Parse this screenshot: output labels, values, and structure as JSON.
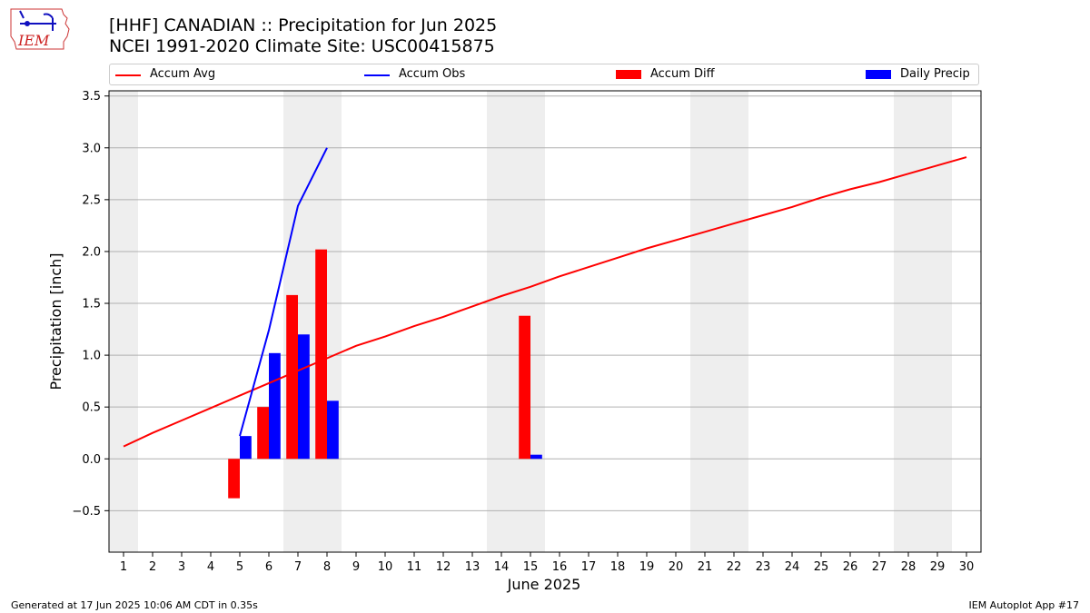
{
  "header": {
    "title_line1": "[HHF] CANADIAN :: Precipitation for Jun 2025",
    "title_line2": "NCEI 1991-2020 Climate Site: USC00415875"
  },
  "logo": {
    "text": "IEM",
    "icon": "iem-iowa-logo-icon"
  },
  "footer": {
    "left": "Generated at 17 Jun 2025 10:06 AM CDT in 0.35s",
    "right": "IEM Autoplot App #17"
  },
  "colors": {
    "avg": "#ff0000",
    "obs": "#0000ff",
    "diff": "#ff0000",
    "daily": "#0000ff",
    "weekend_shade": "#eeeeee",
    "grid": "#b0b0b0"
  },
  "chart_data": {
    "type": "bar",
    "xlabel": "June 2025",
    "ylabel": "Precipitation [inch]",
    "xlim": [
      0.5,
      30.5
    ],
    "ylim": [
      -0.9,
      3.55
    ],
    "yticks": [
      -0.5,
      0.0,
      0.5,
      1.0,
      1.5,
      2.0,
      2.5,
      3.0,
      3.5
    ],
    "ytick_labels": [
      "−0.5",
      "0.0",
      "0.5",
      "1.0",
      "1.5",
      "2.0",
      "2.5",
      "3.0",
      "3.5"
    ],
    "days": [
      1,
      2,
      3,
      4,
      5,
      6,
      7,
      8,
      9,
      10,
      11,
      12,
      13,
      14,
      15,
      16,
      17,
      18,
      19,
      20,
      21,
      22,
      23,
      24,
      25,
      26,
      27,
      28,
      29,
      30
    ],
    "grid": "horizontal",
    "legend_position": "top",
    "weekend_days": [
      1,
      7,
      8,
      14,
      15,
      21,
      22,
      28,
      29
    ],
    "series": [
      {
        "name": "Accum Avg",
        "kind": "line",
        "x": [
          1,
          2,
          3,
          4,
          5,
          6,
          7,
          8,
          9,
          10,
          11,
          12,
          13,
          14,
          15,
          16,
          17,
          18,
          19,
          20,
          21,
          22,
          23,
          24,
          25,
          26,
          27,
          28,
          29,
          30
        ],
        "values": [
          0.12,
          0.25,
          0.37,
          0.49,
          0.61,
          0.73,
          0.85,
          0.97,
          1.09,
          1.18,
          1.28,
          1.37,
          1.47,
          1.57,
          1.66,
          1.76,
          1.85,
          1.94,
          2.03,
          2.11,
          2.19,
          2.27,
          2.35,
          2.43,
          2.52,
          2.6,
          2.67,
          2.75,
          2.83,
          2.91
        ]
      },
      {
        "name": "Accum Obs",
        "kind": "line",
        "x": [
          5,
          6,
          7,
          8
        ],
        "values": [
          0.22,
          1.24,
          2.44,
          3.0
        ]
      },
      {
        "name": "Accum Diff",
        "kind": "bar",
        "x": [
          5,
          6,
          7,
          8,
          15
        ],
        "values": [
          -0.38,
          0.5,
          1.58,
          2.02,
          1.38
        ]
      },
      {
        "name": "Daily Precip",
        "kind": "bar",
        "x": [
          5,
          6,
          7,
          8,
          15
        ],
        "values": [
          0.22,
          1.02,
          1.2,
          0.56,
          0.04
        ]
      }
    ]
  }
}
